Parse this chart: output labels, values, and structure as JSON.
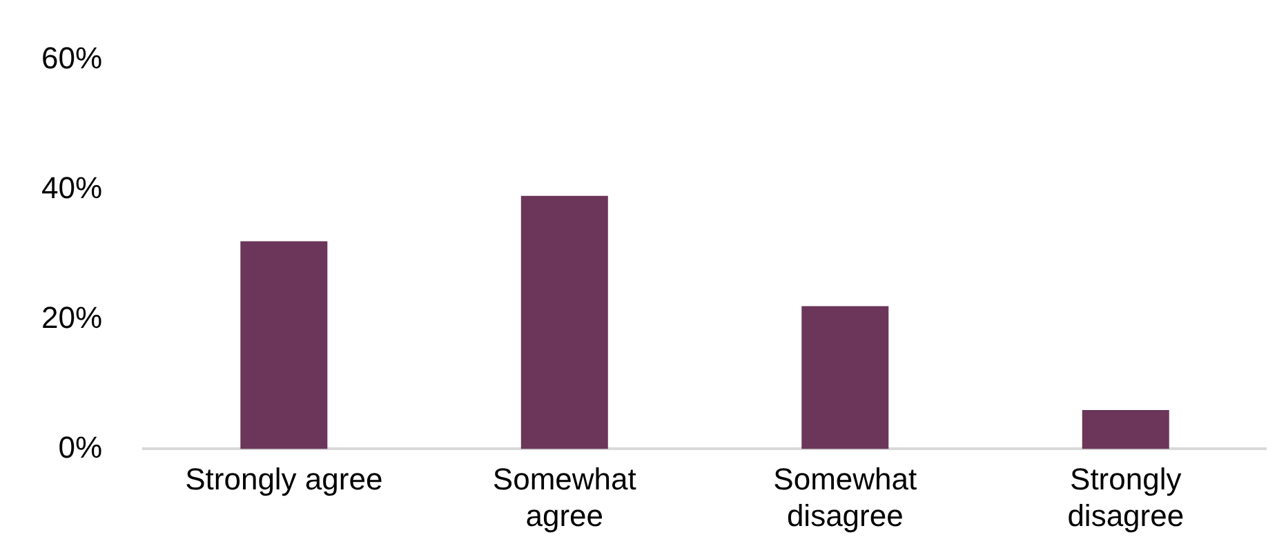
{
  "chart_data": {
    "type": "bar",
    "categories": [
      "Strongly agree",
      "Somewhat\nagree",
      "Somewhat\ndisagree",
      "Strongly\ndisagree"
    ],
    "values": [
      32,
      39,
      22,
      6
    ],
    "color": "#6b3659",
    "ylim": [
      0,
      60
    ],
    "yticks": [
      {
        "value": 0,
        "label": "0%"
      },
      {
        "value": 20,
        "label": "20%"
      },
      {
        "value": 40,
        "label": "40%"
      },
      {
        "value": 60,
        "label": "60%"
      }
    ],
    "grid": false,
    "legend": false
  }
}
